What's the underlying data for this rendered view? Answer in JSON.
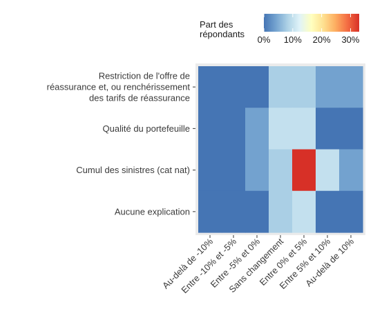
{
  "chart_data": {
    "type": "heatmap",
    "x_categories": [
      "Au-delà de -10%",
      "Entre -10% et -5%",
      "Entre -5% et 0%",
      "Sans changement",
      "Entre 0% et 5%",
      "Entre 5% et 10%",
      "Au-delà de 10%"
    ],
    "y_categories": [
      [
        "Restriction de l'offre de",
        "réassurance et, ou renchérissement",
        "des tarifs de réassurance"
      ],
      [
        "Qualité du portefeuille"
      ],
      [
        "Cumul des sinistres (cat nat)"
      ],
      [
        "Aucune explication"
      ]
    ],
    "values": [
      [
        0,
        0,
        0,
        8,
        8,
        4,
        4
      ],
      [
        0,
        0,
        4,
        10,
        10,
        0,
        0
      ],
      [
        0,
        0,
        4,
        8,
        33,
        10,
        4
      ],
      [
        0,
        0,
        0,
        8,
        10,
        0,
        0
      ]
    ],
    "legend": {
      "title": [
        "Part des",
        "répondants"
      ],
      "ticks": [
        "0%",
        "10%",
        "20%",
        "30%"
      ],
      "tick_values": [
        0,
        10,
        20,
        30
      ],
      "range": [
        0,
        33
      ],
      "position": "top-right"
    },
    "colors": [
      "#4575b4",
      "#74a3d0",
      "#aed2e6",
      "#e0f3f8",
      "#ffffbf",
      "#fee090",
      "#fdae61",
      "#f46d43",
      "#d73027"
    ],
    "panel_background": "#ebebeb"
  }
}
